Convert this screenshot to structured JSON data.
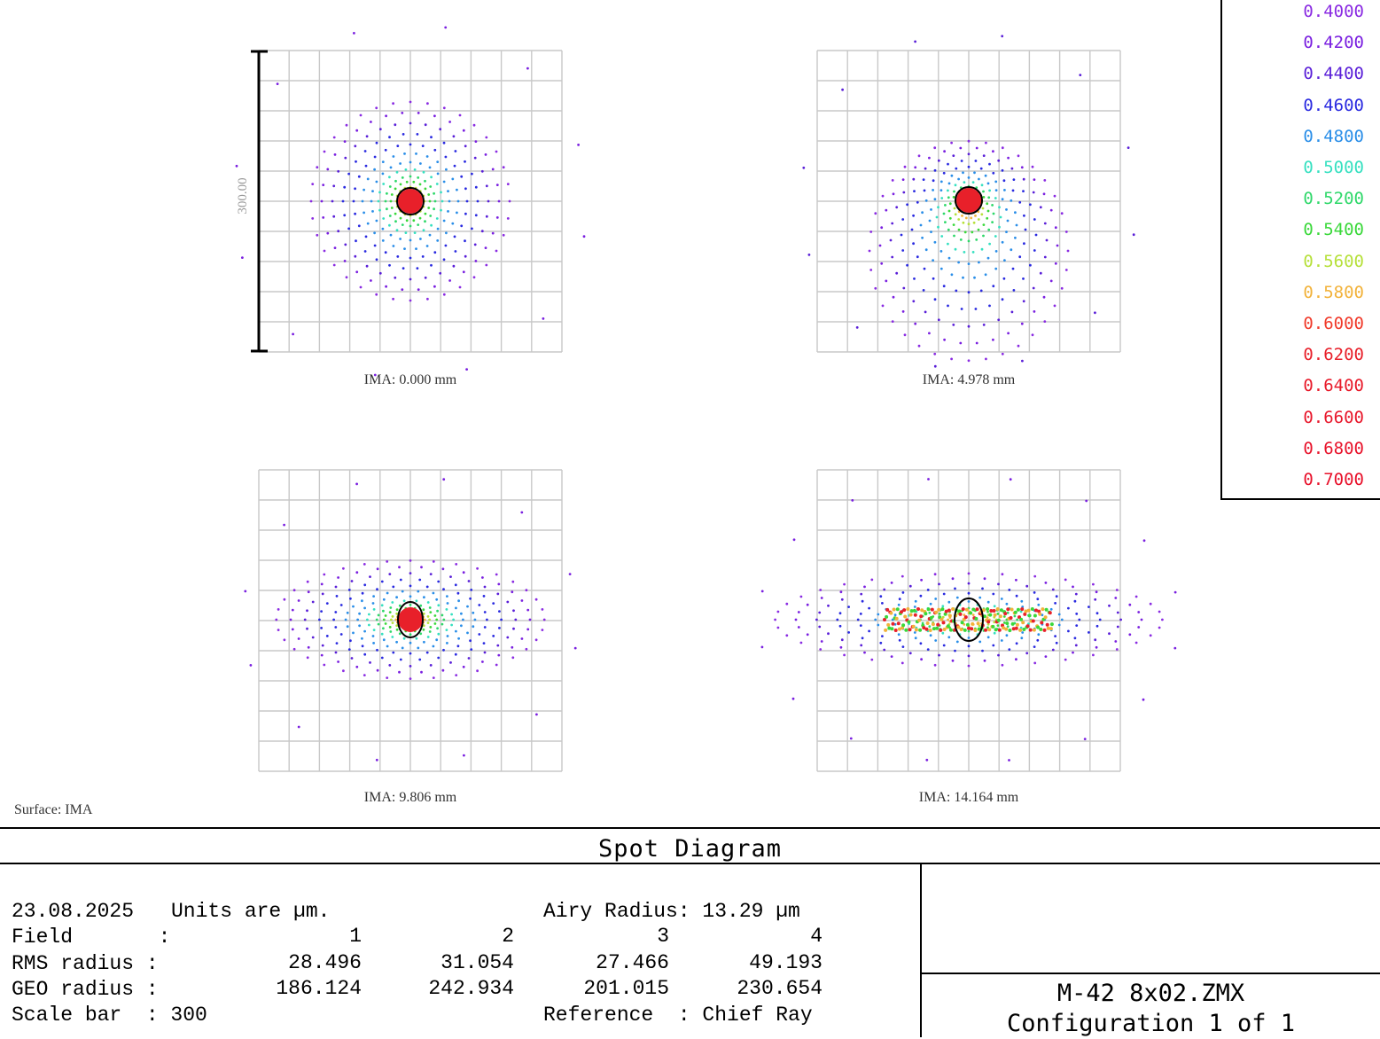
{
  "chart_data": {
    "type": "scatter",
    "title": "Spot Diagram",
    "scale_bar_label": "300.00",
    "surface_label": "Surface: IMA",
    "panels": [
      {
        "label": "IMA: 0.000 mm",
        "rms_radius": 28.496,
        "geo_radius": 186.124,
        "shape": "round"
      },
      {
        "label": "IMA: 4.978 mm",
        "rms_radius": 31.054,
        "geo_radius": 242.934,
        "shape": "comatic"
      },
      {
        "label": "IMA: 9.806 mm",
        "rms_radius": 27.466,
        "geo_radius": 201.015,
        "shape": "flattened"
      },
      {
        "label": "IMA: 14.164 mm",
        "rms_radius": 49.193,
        "geo_radius": 230.654,
        "shape": "elongated"
      }
    ],
    "wavelengths": [
      {
        "value": "0.4000",
        "color": "#8a2be2"
      },
      {
        "value": "0.4200",
        "color": "#7a1fe0"
      },
      {
        "value": "0.4400",
        "color": "#5a1fd8"
      },
      {
        "value": "0.4600",
        "color": "#2a2ae0"
      },
      {
        "value": "0.4800",
        "color": "#2a8ee8"
      },
      {
        "value": "0.5000",
        "color": "#35e0c0"
      },
      {
        "value": "0.5200",
        "color": "#2fd86a"
      },
      {
        "value": "0.5400",
        "color": "#3ad83a"
      },
      {
        "value": "0.5600",
        "color": "#b6e03a"
      },
      {
        "value": "0.5800",
        "color": "#f2b23a"
      },
      {
        "value": "0.6000",
        "color": "#f03a2a"
      },
      {
        "value": "0.6200",
        "color": "#e8202a"
      },
      {
        "value": "0.6400",
        "color": "#e81a2a"
      },
      {
        "value": "0.6600",
        "color": "#e8162a"
      },
      {
        "value": "0.6800",
        "color": "#e8122a"
      },
      {
        "value": "0.7000",
        "color": "#e8102a"
      }
    ]
  },
  "footer": {
    "title": "Spot Diagram",
    "date": "23.08.2025",
    "units": "Units are µm.",
    "airy": "Airy Radius: 13.29 µm",
    "field_label": "Field       :",
    "rms_label": "RMS radius :",
    "geo_label": "GEO radius :",
    "scale_label": "Scale bar  : 300",
    "reference": "Reference  : Chief Ray",
    "fields": [
      "1",
      "2",
      "3",
      "4"
    ],
    "rms": [
      "28.496",
      "31.054",
      "27.466",
      "49.193"
    ],
    "geo": [
      "186.124",
      "242.934",
      "201.015",
      "230.654"
    ],
    "file": "M-42 8x02.ZMX",
    "config": "Configuration 1 of 1"
  }
}
